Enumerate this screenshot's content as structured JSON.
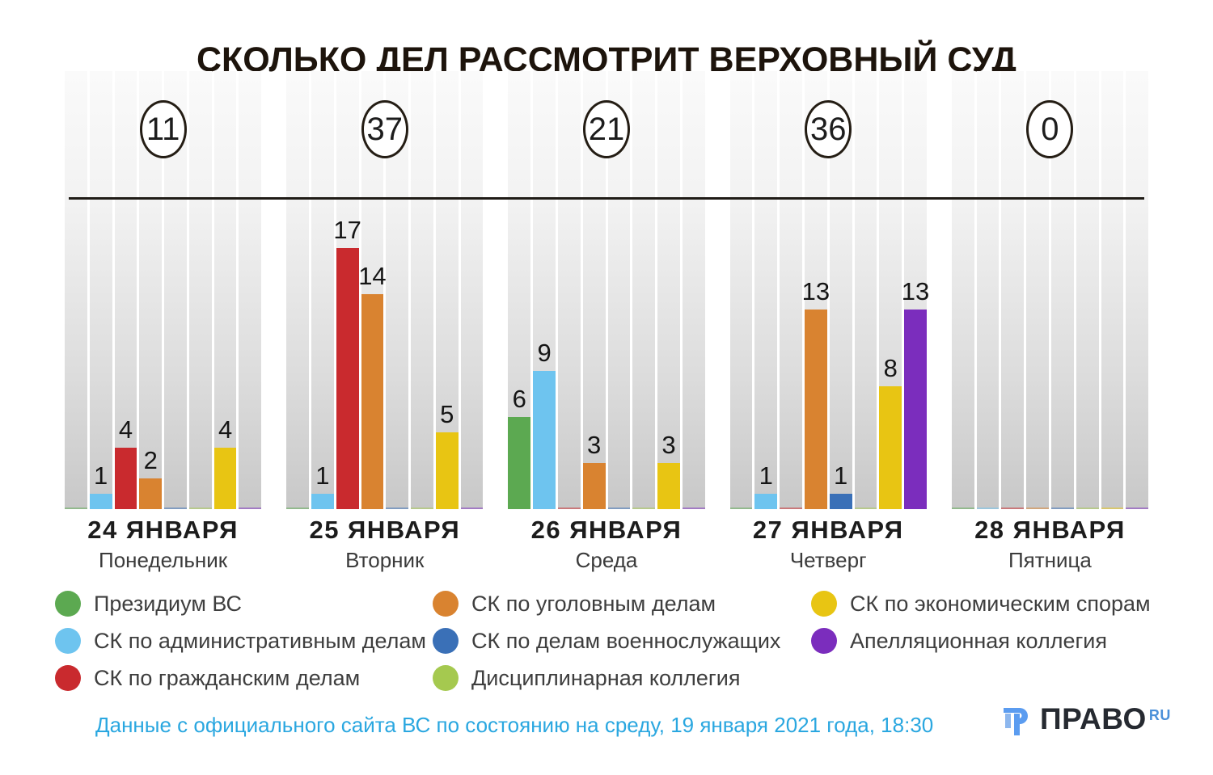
{
  "title": "СКОЛЬКО ДЕЛ РАССМОТРИТ ВЕРХОВНЫЙ СУД",
  "chart_data": {
    "type": "bar",
    "title": "СКОЛЬКО ДЕЛ РАССМОТРИТ ВЕРХОВНЫЙ СУД",
    "ylim": [
      0,
      17
    ],
    "grid": false,
    "legend_position": "bottom",
    "categories": [
      {
        "key": "prezidium-vs",
        "name": "Президиум ВС",
        "color": "#5ca951"
      },
      {
        "key": "sk-admin",
        "name": "СК по административным делам",
        "color": "#6ec4ef"
      },
      {
        "key": "sk-grazhdanskie",
        "name": "СК по гражданским делам",
        "color": "#c92a2e"
      },
      {
        "key": "sk-ugolovnye",
        "name": "СК по уголовным делам",
        "color": "#d98330"
      },
      {
        "key": "sk-voennye",
        "name": "СК по делам военнослужащих",
        "color": "#3a70b7"
      },
      {
        "key": "disciplinarnaya",
        "name": "Дисциплинарная коллегия",
        "color": "#a5c94f"
      },
      {
        "key": "sk-ekonom",
        "name": "СК по экономическим спорам",
        "color": "#e8c513"
      },
      {
        "key": "apellyacionnaya",
        "name": "Апелляционная коллегия",
        "color": "#7b2dbd"
      }
    ],
    "days": [
      {
        "date": "24 ЯНВАРЯ",
        "weekday": "Понедельник",
        "total": 11,
        "values": [
          0,
          1,
          4,
          2,
          0,
          0,
          4,
          0
        ]
      },
      {
        "date": "25 ЯНВАРЯ",
        "weekday": "Вторник",
        "total": 37,
        "values": [
          0,
          1,
          17,
          14,
          0,
          0,
          5,
          0
        ]
      },
      {
        "date": "26 ЯНВАРЯ",
        "weekday": "Среда",
        "total": 21,
        "values": [
          6,
          9,
          0,
          3,
          0,
          0,
          3,
          0
        ]
      },
      {
        "date": "27 ЯНВАРЯ",
        "weekday": "Четверг",
        "total": 36,
        "values": [
          0,
          1,
          0,
          13,
          1,
          0,
          8,
          13
        ]
      },
      {
        "date": "28 ЯНВАРЯ",
        "weekday": "Пятница",
        "total": 0,
        "values": [
          0,
          0,
          0,
          0,
          0,
          0,
          0,
          0
        ]
      }
    ]
  },
  "legend": {
    "columns": [
      [
        0,
        1,
        2
      ],
      [
        3,
        4,
        5
      ],
      [
        6,
        7
      ]
    ]
  },
  "footer": {
    "source_note": "Данные с официального сайта ВС по состоянию на среду, 19 января 2021 года, 18:30",
    "logo_text": "ПРАВО",
    "logo_suffix": "RU",
    "logo_color": "#4a90d9",
    "note_color": "#2aa7e0"
  }
}
